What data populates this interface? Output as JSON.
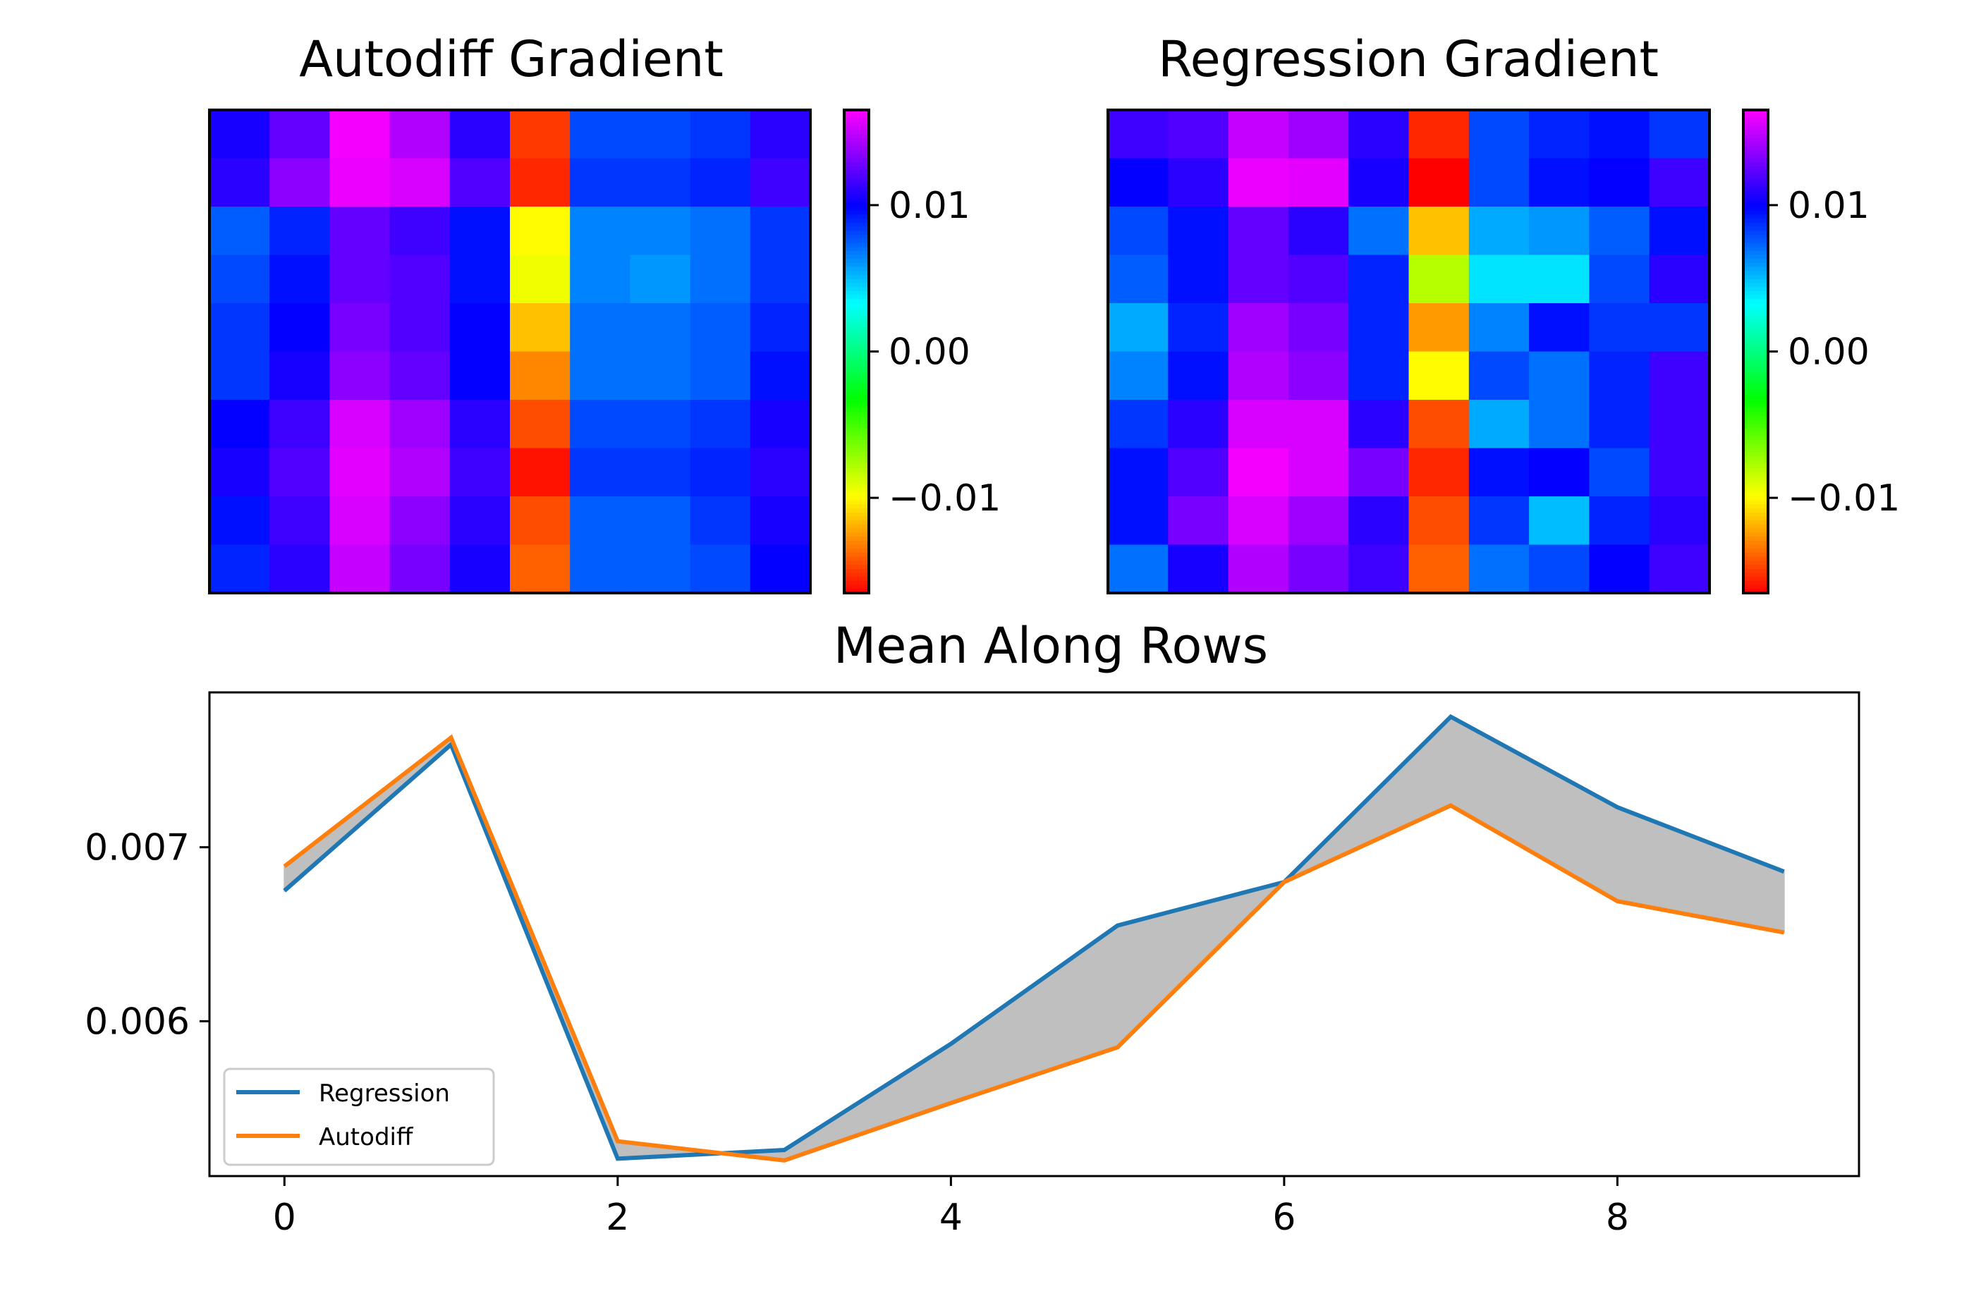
{
  "chart_data": [
    {
      "type": "heatmap",
      "title": "Autodiff Gradient",
      "colormap": "gist_rainbow",
      "vmin": -0.0165,
      "vmax": 0.0165,
      "colorbar_ticks": [
        0.01,
        0.0,
        -0.01
      ],
      "colorbar_tick_labels": [
        "0.01",
        "0.00",
        "−0.01"
      ],
      "z": [
        [
          0.0105,
          0.0125,
          0.0162,
          0.0145,
          0.011,
          -0.015,
          0.008,
          0.008,
          0.0085,
          0.011
        ],
        [
          0.011,
          0.0135,
          0.016,
          0.0155,
          0.012,
          -0.0155,
          0.0085,
          0.0085,
          0.009,
          0.0115
        ],
        [
          0.0075,
          0.009,
          0.0125,
          0.0115,
          0.0095,
          -0.01,
          0.0065,
          0.0065,
          0.007,
          0.0085
        ],
        [
          0.008,
          0.0095,
          0.0125,
          0.012,
          0.0095,
          -0.0095,
          0.0065,
          0.006,
          0.007,
          0.0085
        ],
        [
          0.0085,
          0.01,
          0.013,
          0.012,
          0.01,
          -0.0115,
          0.007,
          0.007,
          0.0075,
          0.009
        ],
        [
          0.0085,
          0.0105,
          0.0135,
          0.0125,
          0.01,
          -0.013,
          0.007,
          0.007,
          0.0075,
          0.0095
        ],
        [
          0.01,
          0.0115,
          0.0155,
          0.014,
          0.011,
          -0.0145,
          0.008,
          0.008,
          0.0085,
          0.0105
        ],
        [
          0.0105,
          0.012,
          0.0158,
          0.0145,
          0.0115,
          -0.016,
          0.0085,
          0.0085,
          0.009,
          0.011
        ],
        [
          0.0095,
          0.0115,
          0.0155,
          0.0135,
          0.011,
          -0.0145,
          0.0075,
          0.0075,
          0.0085,
          0.0105
        ],
        [
          0.009,
          0.011,
          0.015,
          0.013,
          0.0105,
          -0.014,
          0.0075,
          0.0075,
          0.008,
          0.01
        ]
      ]
    },
    {
      "type": "heatmap",
      "title": "Regression Gradient",
      "colormap": "gist_rainbow",
      "vmin": -0.0165,
      "vmax": 0.0165,
      "colorbar_ticks": [
        0.01,
        0.0,
        -0.01
      ],
      "colorbar_tick_labels": [
        "0.01",
        "0.00",
        "−0.01"
      ],
      "z": [
        [
          0.0115,
          0.012,
          0.015,
          0.014,
          0.011,
          -0.0155,
          0.008,
          0.009,
          0.0095,
          0.0085
        ],
        [
          0.01,
          0.011,
          0.016,
          0.0158,
          0.0105,
          -0.0165,
          0.008,
          0.0095,
          0.01,
          0.0115
        ],
        [
          0.008,
          0.0095,
          0.0125,
          0.011,
          0.007,
          -0.0115,
          0.0055,
          0.006,
          0.0075,
          0.0095
        ],
        [
          0.0075,
          0.0095,
          0.0125,
          0.012,
          0.009,
          -0.008,
          0.004,
          0.004,
          0.008,
          0.011
        ],
        [
          0.0055,
          0.009,
          0.014,
          0.013,
          0.009,
          -0.0125,
          0.0065,
          0.0095,
          0.0085,
          0.0085
        ],
        [
          0.0065,
          0.0095,
          0.0145,
          0.0135,
          0.009,
          -0.01,
          0.008,
          0.007,
          0.009,
          0.0115
        ],
        [
          0.0085,
          0.011,
          0.0155,
          0.0155,
          0.011,
          -0.0145,
          0.0055,
          0.007,
          0.009,
          0.0115
        ],
        [
          0.0095,
          0.012,
          0.0162,
          0.0155,
          0.013,
          -0.0155,
          0.0095,
          0.01,
          0.008,
          0.0115
        ],
        [
          0.0095,
          0.013,
          0.0155,
          0.014,
          0.011,
          -0.0145,
          0.0085,
          0.005,
          0.009,
          0.011
        ],
        [
          0.007,
          0.0105,
          0.0145,
          0.013,
          0.0115,
          -0.014,
          0.007,
          0.008,
          0.01,
          0.0115
        ]
      ]
    },
    {
      "type": "line",
      "title": "Mean Along Rows",
      "xlabel": "",
      "ylabel": "",
      "x": [
        0,
        1,
        2,
        3,
        4,
        5,
        6,
        7,
        8,
        9
      ],
      "xlim": [
        -0.45,
        9.45
      ],
      "ylim": [
        0.00511,
        0.00789
      ],
      "xticks": [
        0,
        2,
        4,
        6,
        8
      ],
      "yticks": [
        0.006,
        0.007
      ],
      "ytick_labels": [
        "0.006",
        "0.007"
      ],
      "grid": false,
      "legend_position": "lower-left",
      "fill_between": {
        "series": [
          "Regression",
          "Autodiff"
        ],
        "color": "#bfbfbf"
      },
      "series": [
        {
          "name": "Regression",
          "color": "#1f77b4",
          "values": [
            0.00675,
            0.00759,
            0.00521,
            0.00526,
            0.00587,
            0.00655,
            0.0068,
            0.00775,
            0.00723,
            0.00686
          ]
        },
        {
          "name": "Autodiff",
          "color": "#ff7f0e",
          "values": [
            0.00689,
            0.00763,
            0.00531,
            0.0052,
            0.00553,
            0.00585,
            0.0068,
            0.00724,
            0.00669,
            0.00651
          ]
        }
      ]
    }
  ]
}
